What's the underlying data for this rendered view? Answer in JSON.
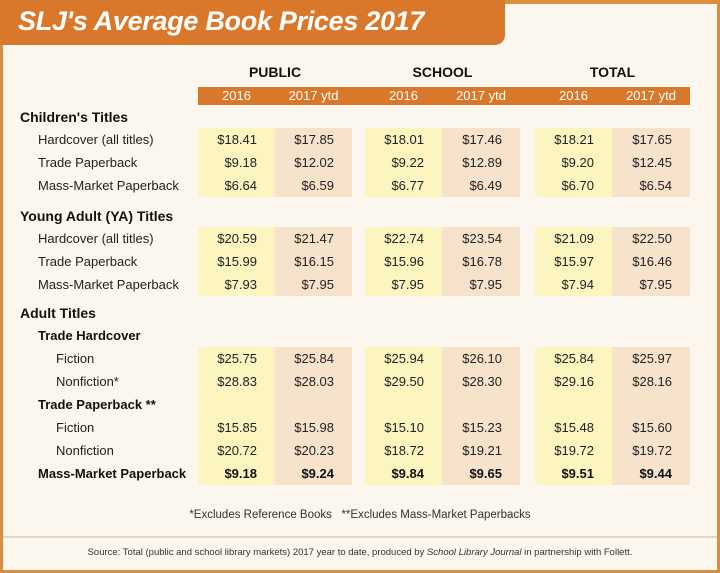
{
  "colors": {
    "accent": "#d9782a",
    "col2016": "#fdf5c0",
    "col2017": "#f7e2cb",
    "background": "#fbf6ee"
  },
  "chart_data": {
    "type": "table",
    "title": "SLJ's Average Book Prices 2017",
    "column_groups": [
      "PUBLIC",
      "SCHOOL",
      "TOTAL"
    ],
    "years": [
      "2016",
      "2017 ytd"
    ],
    "rows": [
      {
        "label": "Children's Titles",
        "kind": "section"
      },
      {
        "label": "Hardcover (all titles)",
        "values": [
          "$18.41",
          "$17.85",
          "$18.01",
          "$17.46",
          "$18.21",
          "$17.65"
        ]
      },
      {
        "label": "Trade Paperback",
        "values": [
          "$9.18",
          "$12.02",
          "$9.22",
          "$12.89",
          "$9.20",
          "$12.45"
        ]
      },
      {
        "label": "Mass-Market Paperback",
        "values": [
          "$6.64",
          "$6.59",
          "$6.77",
          "$6.49",
          "$6.70",
          "$6.54"
        ]
      },
      {
        "label": "Young Adult (YA) Titles",
        "kind": "section"
      },
      {
        "label": "Hardcover (all titles)",
        "values": [
          "$20.59",
          "$21.47",
          "$22.74",
          "$23.54",
          "$21.09",
          "$22.50"
        ]
      },
      {
        "label": "Trade Paperback",
        "values": [
          "$15.99",
          "$16.15",
          "$15.96",
          "$16.78",
          "$15.97",
          "$16.46"
        ]
      },
      {
        "label": "Mass-Market Paperback",
        "values": [
          "$7.93",
          "$7.95",
          "$7.95",
          "$7.95",
          "$7.94",
          "$7.95"
        ]
      },
      {
        "label": "Adult Titles",
        "kind": "section"
      },
      {
        "label": "Trade Hardcover",
        "kind": "sub"
      },
      {
        "label": "Fiction",
        "level": 2,
        "values": [
          "$25.75",
          "$25.84",
          "$25.94",
          "$26.10",
          "$25.84",
          "$25.97"
        ]
      },
      {
        "label": "Nonfiction*",
        "level": 2,
        "values": [
          "$28.83",
          "$28.03",
          "$29.50",
          "$28.30",
          "$29.16",
          "$28.16"
        ]
      },
      {
        "label": "Trade Paperback **",
        "kind": "sub"
      },
      {
        "label": "Fiction",
        "level": 2,
        "values": [
          "$15.85",
          "$15.98",
          "$15.10",
          "$15.23",
          "$15.48",
          "$15.60"
        ]
      },
      {
        "label": "Nonfiction",
        "level": 2,
        "values": [
          "$20.72",
          "$20.23",
          "$18.72",
          "$19.21",
          "$19.72",
          "$19.72"
        ]
      },
      {
        "label": "Mass-Market Paperback",
        "kind": "sub",
        "values": [
          "$9.18",
          "$9.24",
          "$9.84",
          "$9.65",
          "$9.51",
          "$9.44"
        ]
      }
    ]
  },
  "footnote": "*Excludes Reference Books   **Excludes Mass-Market Paperbacks",
  "source": {
    "prefix": "Source: Total (public and school library markets) 2017 year to date, produced by ",
    "publication": "School Library Journal",
    "suffix": " in partnership with Follett."
  }
}
